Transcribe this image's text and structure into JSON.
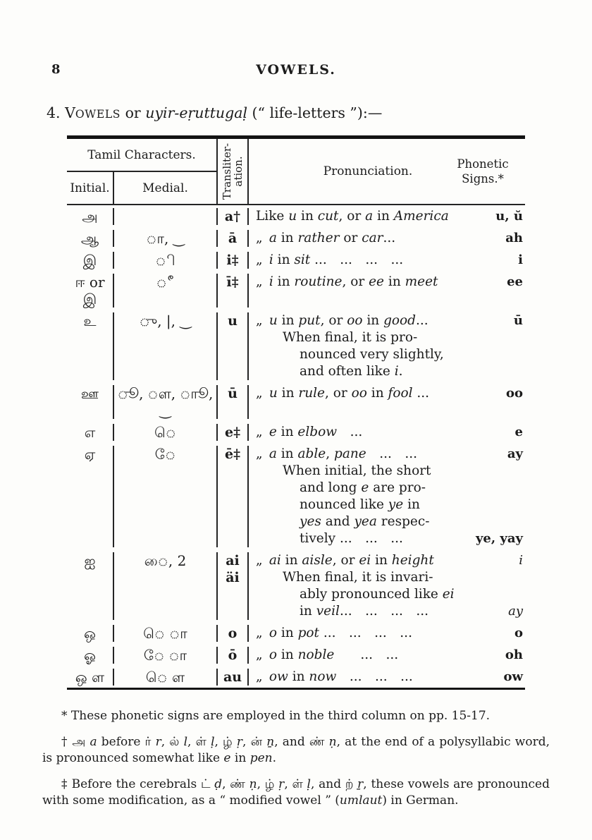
{
  "page": {
    "number": "8",
    "running_header": "VOWELS.",
    "heading": "4. V^OWELS^ or *uyir-eṛuttugaḷ* (“ life-letters ”):—"
  },
  "table": {
    "headers": {
      "group": "Tamil Characters.",
      "initial": "Initial.",
      "medial": "Medial.",
      "translit_line1": "Transliter-",
      "translit_line2": "ation.",
      "pronunciation": "Pronunciation.",
      "phonetic_line1": "Phonetic",
      "phonetic_line2": "Signs.*"
    },
    "rows": [
      {
        "initial": "அ",
        "medial": "",
        "translit": [
          "a†"
        ],
        "lines": [
          {
            "t": "Like *u* in *cut*, or *a* in *America*",
            "s": "u, ŭ",
            "i": 0
          }
        ]
      },
      {
        "initial": "ஆ",
        "medial": "ா, ‿",
        "translit": [
          "ā"
        ],
        "lines": [
          {
            "t": "„ *a* in *rather* or *car*...",
            "s": "ah",
            "i": 0
          }
        ]
      },
      {
        "initial": "இ",
        "medial": "ி",
        "translit": [
          "i‡"
        ],
        "lines": [
          {
            "t": "„ *i* in *sit* ... ... ... ...",
            "s": "i",
            "i": 0
          }
        ]
      },
      {
        "initial": "ஈ or இ",
        "medial": "ீ",
        "translit": [
          "ī‡"
        ],
        "lines": [
          {
            "t": "„ *i* in *routine*, or *ee* in *meet*",
            "s": "ee",
            "i": 0
          }
        ]
      },
      {
        "initial": "உ",
        "medial": "ு, |, ‿",
        "translit": [
          "u"
        ],
        "lines": [
          {
            "t": "„ *u* in *put*, or *oo* in *good*...",
            "s": "ū",
            "i": 0
          },
          {
            "t": "When final, it is pro-",
            "i": 1
          },
          {
            "t": "nounced very slightly,",
            "i": 2
          },
          {
            "t": "and often like *i*.",
            "i": 2
          }
        ]
      },
      {
        "initial": "ஊ",
        "medial": "ூ, ௗ, ாூ, ‿",
        "translit": [
          "ū"
        ],
        "lines": [
          {
            "t": "„ *u* in *rule*, or *oo* in *fool* ...",
            "s": "oo",
            "i": 0
          }
        ]
      },
      {
        "initial": "எ",
        "medial": "ெ",
        "translit": [
          "e‡"
        ],
        "lines": [
          {
            "t": "„ *e* in *elbow* ...",
            "s": "e",
            "i": 0
          }
        ]
      },
      {
        "initial": "ஏ",
        "medial": "ே",
        "translit": [
          "ē‡"
        ],
        "lines": [
          {
            "t": "„ *a* in *able*, *pane* ... ...",
            "s": "ay",
            "i": 0
          },
          {
            "t": "When initial, the short",
            "i": 1
          },
          {
            "t": "and long *e* are pro-",
            "i": 2
          },
          {
            "t": "nounced like *ye* in",
            "i": 2
          },
          {
            "t": "*yes* and *yea* respec-",
            "i": 2
          },
          {
            "t": "tively ... ... ...",
            "s": "ye, yay",
            "i": 2
          }
        ]
      },
      {
        "initial": "ஐ",
        "medial": "ை, 2",
        "translit": [
          "ai",
          "äi"
        ],
        "lines": [
          {
            "t": "„ *ai* in *aisle*, or *ei* in *height*",
            "s": "*i*",
            "i": 0
          },
          {
            "t": "When final, it is invari-",
            "i": 1
          },
          {
            "t": "ably pronounced like *ei*",
            "i": 2
          },
          {
            "t": "in *veil*... ... ... ...",
            "s": "*ay*",
            "i": 2
          }
        ]
      },
      {
        "initial": "ஒ",
        "medial": "ெ ா",
        "translit": [
          "o"
        ],
        "lines": [
          {
            "t": "„ *o* in *pot* ... ... ... ...",
            "s": "o",
            "i": 0
          }
        ]
      },
      {
        "initial": "ஓ",
        "medial": "ே ா",
        "translit": [
          "ō"
        ],
        "lines": [
          {
            "t": "„ *o* in *noble*  ... ...",
            "s": "oh",
            "i": 0
          }
        ]
      },
      {
        "initial": "ஒ ள",
        "medial": "ெ ள",
        "translit": [
          "au"
        ],
        "lines": [
          {
            "t": "„ *ow* in *now* ... ... ...",
            "s": "ow",
            "i": 0
          }
        ]
      }
    ]
  },
  "footnotes": [
    "* These phonetic signs are employed in the third column on pp. 15-17.",
    "† அ *a* before ர் *r*, ல் *l*, ள் *ḷ*, ழ் *ṛ*, ன் *ṉ*, and ண் *ṇ*, at the end of a polysyllabic word, is pronounced somewhat like *e* in *pen*.",
    "‡ Before the cerebrals ட் *ḍ*, ண் *ṇ*, ழ் *ṛ*, ள் *ḷ*, and ற் *ṟ*, these vowels are pronounced with some modification, as a “ modified vowel ” (*umlaut*) in German."
  ]
}
